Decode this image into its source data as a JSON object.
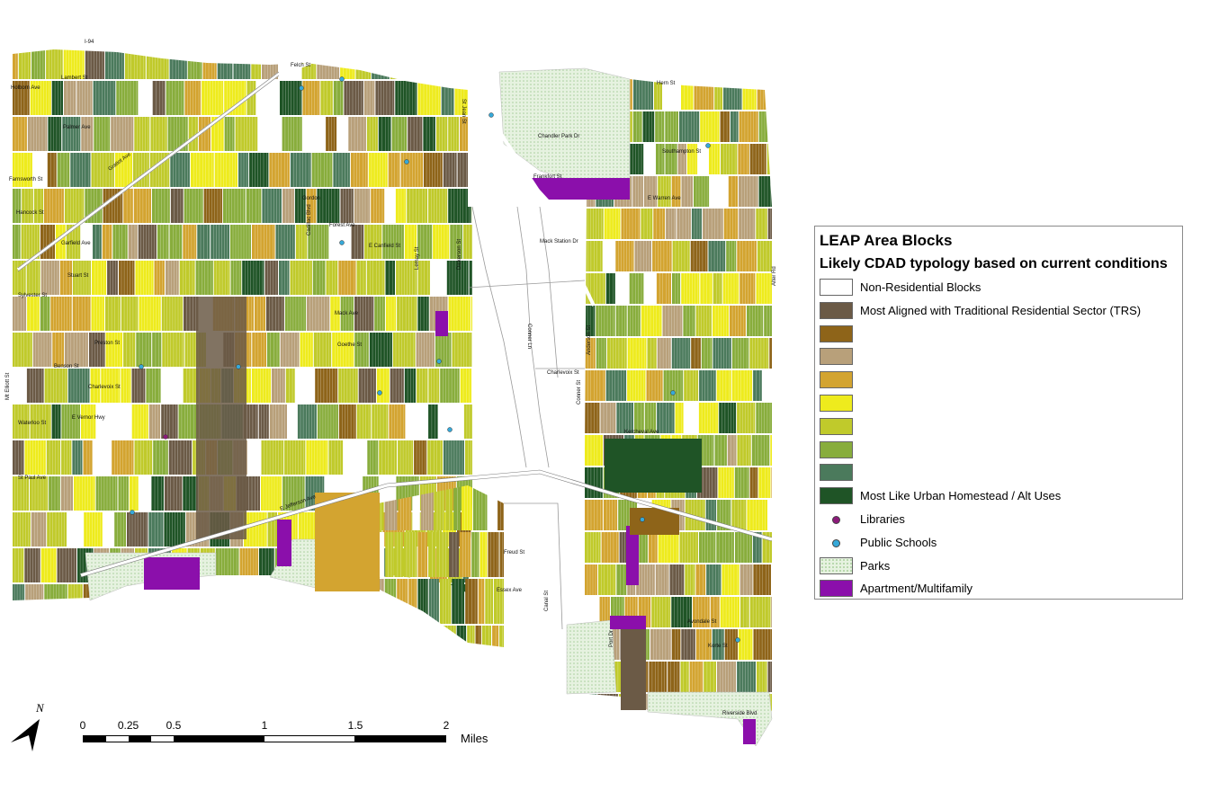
{
  "legend": {
    "title": "LEAP Area Blocks",
    "subtitle": "Likely CDAD typology based on current conditions",
    "items": [
      {
        "label": "Non-Residential Blocks",
        "color": "#ffffff",
        "kind": "swatch"
      },
      {
        "label": "Most Aligned with Traditional Residential Sector (TRS)",
        "color": "#6b5a46",
        "kind": "swatch"
      },
      {
        "label": "",
        "color": "#8e6419",
        "kind": "swatch"
      },
      {
        "label": "",
        "color": "#b8a07a",
        "kind": "swatch"
      },
      {
        "label": "",
        "color": "#d3a430",
        "kind": "swatch"
      },
      {
        "label": "",
        "color": "#eeeb1d",
        "kind": "swatch"
      },
      {
        "label": "",
        "color": "#c0ca2b",
        "kind": "swatch"
      },
      {
        "label": "",
        "color": "#88ad3c",
        "kind": "swatch"
      },
      {
        "label": "",
        "color": "#4b7a5c",
        "kind": "swatch"
      },
      {
        "label": "Most Like Urban Homestead / Alt Uses",
        "color": "#1f5426",
        "kind": "swatch"
      },
      {
        "label": "Libraries",
        "color": "#8c1a7a",
        "kind": "point"
      },
      {
        "label": "Public Schools",
        "color": "#36a9d9",
        "kind": "point"
      },
      {
        "label": "Parks",
        "color": "#e6f2e0",
        "kind": "pattern"
      },
      {
        "label": "Apartment/Multifamily",
        "color": "#8b0fab",
        "kind": "swatch"
      }
    ]
  },
  "scale_bar": {
    "ticks": [
      "0",
      "0.25",
      "0.5",
      "1",
      "1.5",
      "2"
    ],
    "tick_values": [
      0,
      0.25,
      0.5,
      1,
      1.5,
      2
    ],
    "unit": "Miles"
  },
  "north_arrow": {
    "label": "N"
  },
  "map": {
    "street_labels": [
      "I-94",
      "Felch St",
      "Lambert St",
      "Holborn Ave",
      "Palmer Ave",
      "Farnsworth St",
      "Hancock St",
      "Garfield Ave",
      "Stuart St",
      "Sylvester St",
      "Preston St",
      "Benson St",
      "Charlevoix St",
      "E Vernor Hwy",
      "Waterloo St",
      "St Paul Ave",
      "Gratiot Ave",
      "Mt Elliott St",
      "Forest Ave",
      "E Canfield St",
      "Mack Ave",
      "Goethe St",
      "Kercheval Ave",
      "E Jefferson Ave",
      "Chandler Park Dr",
      "Frankfort St",
      "Mack Station Dr",
      "Conner St",
      "Conner Ln",
      "Charlevoix St",
      "Freud St",
      "Essex Ave",
      "Canal St",
      "Port Dr",
      "Avondale St",
      "Korte St",
      "Riverside Blvd",
      "Alter Rd",
      "St Jean St",
      "E Warren Ave",
      "Gordon",
      "Cadillac Blvd",
      "Lemay St",
      "Dickerson St",
      "Hern St",
      "Southampton St",
      "Anderson St"
    ]
  }
}
